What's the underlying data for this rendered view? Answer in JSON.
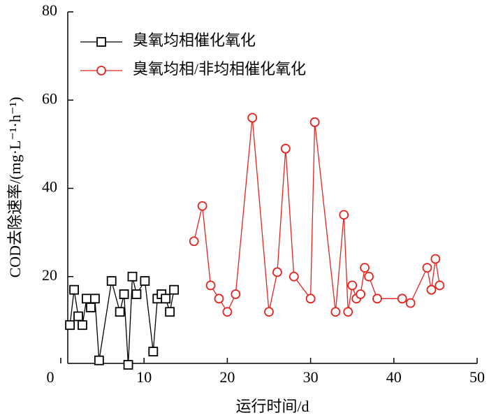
{
  "chart_data": {
    "type": "line",
    "x_label": "运行时间/d",
    "y_label": "COD去除速率/(mg·L⁻¹·h⁻¹)",
    "xlim": [
      0,
      50
    ],
    "xticks": [
      0,
      10,
      20,
      30,
      40,
      50
    ],
    "ylim": [
      0,
      80
    ],
    "yticks": [
      20,
      40,
      60,
      80
    ],
    "legend": "upper-left",
    "series": [
      {
        "name": "臭氧均相催化氧化",
        "color": "#000000",
        "marker": "square",
        "x": [
          1.1,
          1.6,
          2.1,
          2.6,
          3.1,
          3.6,
          4.1,
          4.6,
          6.1,
          7.1,
          7.6,
          8.1,
          8.6,
          9.1,
          10.1,
          11.1,
          11.6,
          12.1,
          12.6,
          13.1,
          13.6
        ],
        "values": [
          9,
          17,
          11,
          9,
          15,
          13,
          15,
          1,
          19,
          12,
          16,
          0,
          20,
          16,
          19,
          3,
          15,
          16,
          15,
          12,
          17
        ]
      },
      {
        "name": "臭氧均相/非均相催化氧化",
        "color": "#e8231f",
        "marker": "circle",
        "x": [
          16,
          17,
          18,
          19,
          20,
          21,
          23,
          25,
          26,
          27,
          28,
          30,
          30.5,
          33,
          34,
          34.5,
          35,
          35.5,
          36,
          36.5,
          37,
          38,
          41,
          42,
          44,
          44.5,
          45,
          45.5
        ],
        "values": [
          28,
          36,
          18,
          15,
          12,
          16,
          56,
          12,
          21,
          49,
          20,
          15,
          55,
          12,
          34,
          12,
          18,
          15,
          16,
          22,
          20,
          15,
          15,
          14,
          22,
          17,
          24,
          18
        ]
      }
    ]
  }
}
